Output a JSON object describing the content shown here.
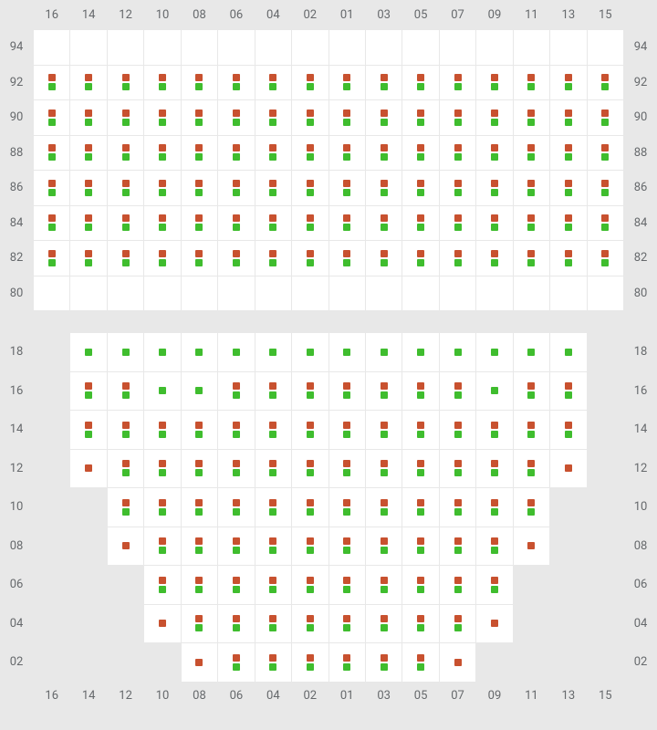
{
  "colors": {
    "red": "#c8512f",
    "green": "#3fbd2e",
    "background": "#e8e8e8",
    "cell_active": "#ffffff",
    "label": "#66696c",
    "divider": "#000000"
  },
  "layout": {
    "total_width": 720,
    "total_height": 800,
    "top_section_height": 365,
    "bottom_section_height": 435,
    "label_col_width": 36,
    "cell_width": 40.5,
    "top_label_row_height": 32,
    "top_cell_height": 37.5,
    "bottom_label_row_height": 30,
    "bottom_cell_height": 41.5
  },
  "columns": [
    "16",
    "14",
    "12",
    "10",
    "08",
    "06",
    "04",
    "02",
    "01",
    "03",
    "05",
    "07",
    "09",
    "11",
    "13",
    "15"
  ],
  "top": {
    "rows": [
      "94",
      "92",
      "90",
      "88",
      "86",
      "84",
      "82",
      "80"
    ],
    "cells": {
      "94": {
        "16": "e",
        "14": "e",
        "12": "e",
        "10": "e",
        "08": "e",
        "06": "e",
        "04": "e",
        "02": "e",
        "01": "e",
        "03": "e",
        "05": "e",
        "07": "e",
        "09": "e",
        "11": "e",
        "13": "e",
        "15": "e"
      },
      "92": {
        "16": "rg",
        "14": "rg",
        "12": "rg",
        "10": "rg",
        "08": "rg",
        "06": "rg",
        "04": "rg",
        "02": "rg",
        "01": "rg",
        "03": "rg",
        "05": "rg",
        "07": "rg",
        "09": "rg",
        "11": "rg",
        "13": "rg",
        "15": "rg"
      },
      "90": {
        "16": "rg",
        "14": "rg",
        "12": "rg",
        "10": "rg",
        "08": "rg",
        "06": "rg",
        "04": "rg",
        "02": "rg",
        "01": "rg",
        "03": "rg",
        "05": "rg",
        "07": "rg",
        "09": "rg",
        "11": "rg",
        "13": "rg",
        "15": "rg"
      },
      "88": {
        "16": "rg",
        "14": "rg",
        "12": "rg",
        "10": "rg",
        "08": "rg",
        "06": "rg",
        "04": "rg",
        "02": "rg",
        "01": "rg",
        "03": "rg",
        "05": "rg",
        "07": "rg",
        "09": "rg",
        "11": "rg",
        "13": "rg",
        "15": "rg"
      },
      "86": {
        "16": "rg",
        "14": "rg",
        "12": "rg",
        "10": "rg",
        "08": "rg",
        "06": "rg",
        "04": "rg",
        "02": "rg",
        "01": "rg",
        "03": "rg",
        "05": "rg",
        "07": "rg",
        "09": "rg",
        "11": "rg",
        "13": "rg",
        "15": "rg"
      },
      "84": {
        "16": "rg",
        "14": "rg",
        "12": "rg",
        "10": "rg",
        "08": "rg",
        "06": "rg",
        "04": "rg",
        "02": "rg",
        "01": "rg",
        "03": "rg",
        "05": "rg",
        "07": "rg",
        "09": "rg",
        "11": "rg",
        "13": "rg",
        "15": "rg"
      },
      "82": {
        "16": "rg",
        "14": "rg",
        "12": "rg",
        "10": "rg",
        "08": "rg",
        "06": "rg",
        "04": "rg",
        "02": "rg",
        "01": "rg",
        "03": "rg",
        "05": "rg",
        "07": "rg",
        "09": "rg",
        "11": "rg",
        "13": "rg",
        "15": "rg"
      },
      "80": {
        "16": "e",
        "14": "e",
        "12": "e",
        "10": "e",
        "08": "e",
        "06": "e",
        "04": "e",
        "02": "e",
        "01": "e",
        "03": "e",
        "05": "e",
        "07": "e",
        "09": "e",
        "11": "e",
        "13": "e",
        "15": "e"
      }
    }
  },
  "bottom": {
    "rows": [
      "18",
      "16",
      "14",
      "12",
      "10",
      "08",
      "06",
      "04",
      "02"
    ],
    "cells": {
      "18": {
        "16": "x",
        "14": "g",
        "12": "g",
        "10": "g",
        "08": "g",
        "06": "g",
        "04": "g",
        "02": "g",
        "01": "g",
        "03": "g",
        "05": "g",
        "07": "g",
        "09": "g",
        "11": "g",
        "13": "g",
        "15": "x"
      },
      "16": {
        "16": "x",
        "14": "rg",
        "12": "rg",
        "10": "g",
        "08": "g",
        "06": "rg",
        "04": "rg",
        "02": "rg",
        "01": "rg",
        "03": "rg",
        "05": "rg",
        "07": "rg",
        "09": "g",
        "11": "rg",
        "13": "rg",
        "15": "x"
      },
      "14": {
        "16": "x",
        "14": "rg",
        "12": "rg",
        "10": "rg",
        "08": "rg",
        "06": "rg",
        "04": "rg",
        "02": "rg",
        "01": "rg",
        "03": "rg",
        "05": "rg",
        "07": "rg",
        "09": "rg",
        "11": "rg",
        "13": "rg",
        "15": "x"
      },
      "12": {
        "16": "x",
        "14": "r",
        "12": "rg",
        "10": "rg",
        "08": "rg",
        "06": "rg",
        "04": "rg",
        "02": "rg",
        "01": "rg",
        "03": "rg",
        "05": "rg",
        "07": "rg",
        "09": "rg",
        "11": "rg",
        "13": "r",
        "15": "x"
      },
      "10": {
        "16": "x",
        "14": "x",
        "12": "rg",
        "10": "rg",
        "08": "rg",
        "06": "rg",
        "04": "rg",
        "02": "rg",
        "01": "rg",
        "03": "rg",
        "05": "rg",
        "07": "rg",
        "09": "rg",
        "11": "rg",
        "13": "x",
        "15": "x"
      },
      "08": {
        "16": "x",
        "14": "x",
        "12": "r",
        "10": "rg",
        "08": "rg",
        "06": "rg",
        "04": "rg",
        "02": "rg",
        "01": "rg",
        "03": "rg",
        "05": "rg",
        "07": "rg",
        "09": "rg",
        "11": "r",
        "13": "x",
        "15": "x"
      },
      "06": {
        "16": "x",
        "14": "x",
        "12": "x",
        "10": "rg",
        "08": "rg",
        "06": "rg",
        "04": "rg",
        "02": "rg",
        "01": "rg",
        "03": "rg",
        "05": "rg",
        "07": "rg",
        "09": "rg",
        "11": "x",
        "13": "x",
        "15": "x"
      },
      "04": {
        "16": "x",
        "14": "x",
        "12": "x",
        "10": "r",
        "08": "rg",
        "06": "rg",
        "04": "rg",
        "02": "rg",
        "01": "rg",
        "03": "rg",
        "05": "rg",
        "07": "rg",
        "09": "r",
        "11": "x",
        "13": "x",
        "15": "x"
      },
      "02": {
        "16": "x",
        "14": "x",
        "12": "x",
        "10": "x",
        "08": "r",
        "06": "rg",
        "04": "rg",
        "02": "rg",
        "01": "rg",
        "03": "rg",
        "05": "rg",
        "07": "r",
        "09": "x",
        "11": "x",
        "13": "x",
        "15": "x"
      }
    }
  }
}
